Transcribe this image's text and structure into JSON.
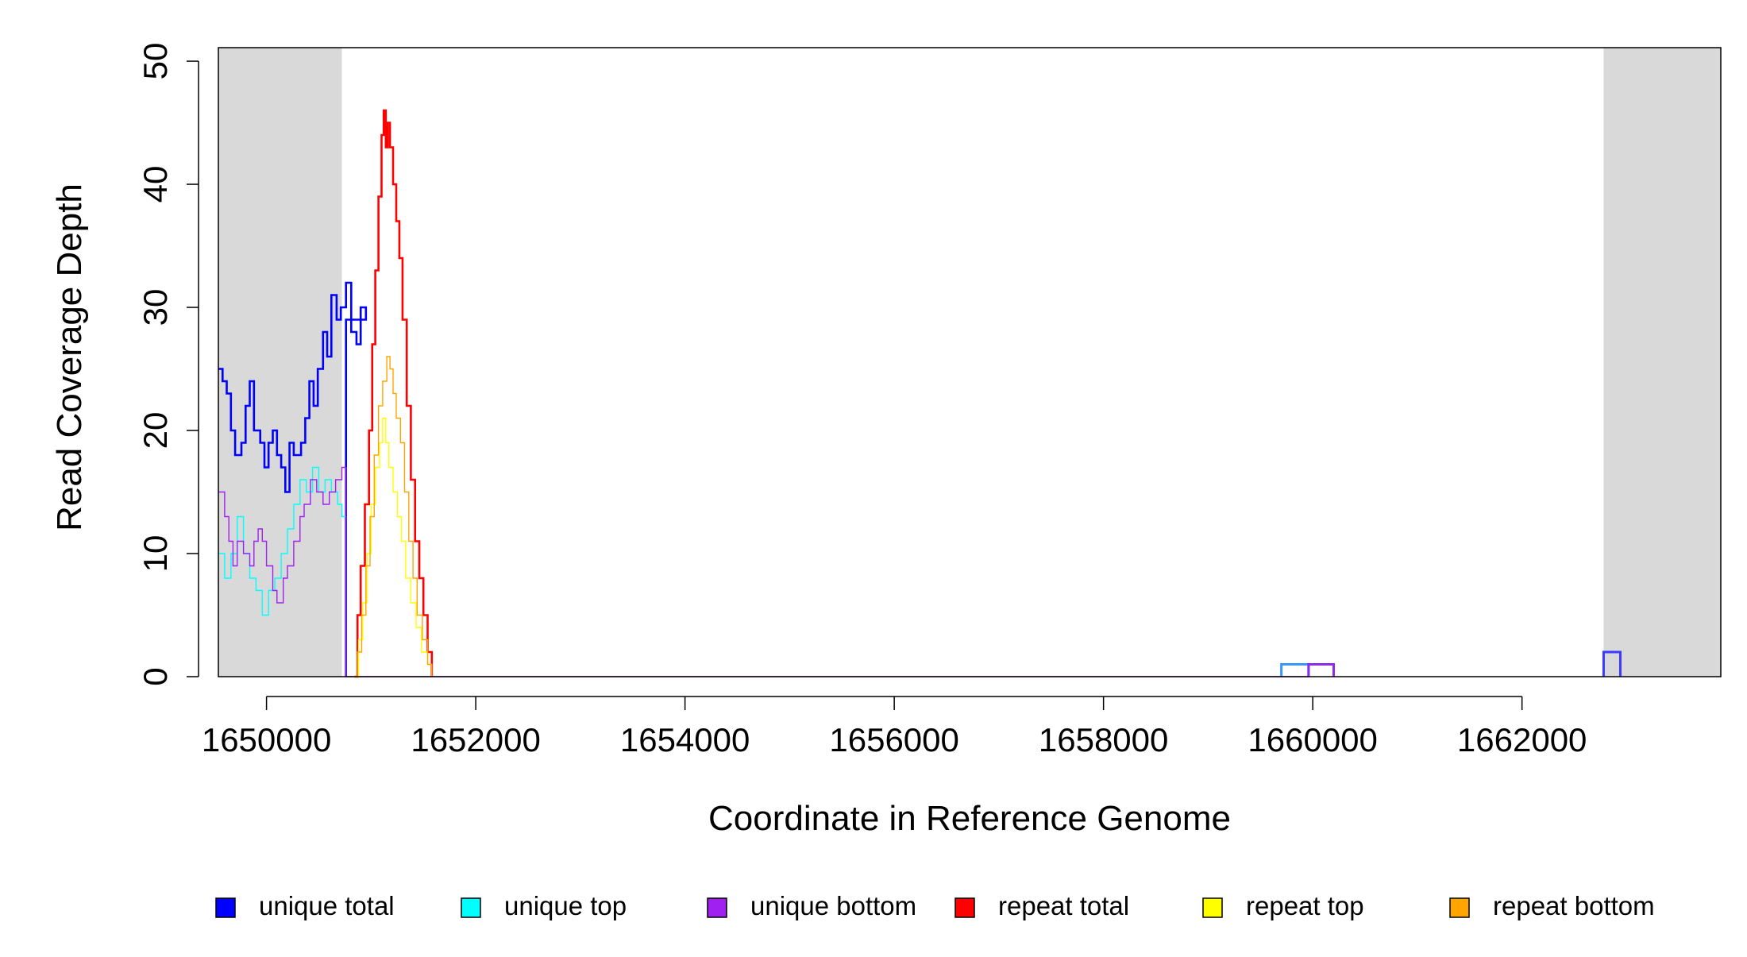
{
  "chart_data": {
    "type": "line",
    "title": "",
    "xlabel": "Coordinate in Reference Genome",
    "ylabel": "Read Coverage Depth",
    "xlim": [
      1649540,
      1663900
    ],
    "ylim": [
      0,
      50
    ],
    "x_ticks": [
      1650000,
      1652000,
      1654000,
      1656000,
      1658000,
      1660000,
      1662000
    ],
    "x_tick_labels": [
      "1650000",
      "1652000",
      "1654000",
      "1656000",
      "1658000",
      "1660000",
      "1662000"
    ],
    "y_ticks": [
      0,
      10,
      20,
      30,
      40,
      50
    ],
    "y_tick_labels": [
      "0",
      "10",
      "20",
      "30",
      "40",
      "50"
    ],
    "grid": false,
    "legend_position": "bottom",
    "shaded_regions": [
      {
        "x0": 1649540,
        "x1": 1650720,
        "color": "#d9d9d9"
      },
      {
        "x0": 1662780,
        "x1": 1663900,
        "color": "#d9d9d9"
      }
    ],
    "series": [
      {
        "name": "unique total",
        "color": "#0000ff",
        "width": 2.6,
        "points": [
          [
            1649540,
            25
          ],
          [
            1649580,
            24
          ],
          [
            1649620,
            23
          ],
          [
            1649660,
            20
          ],
          [
            1649700,
            18
          ],
          [
            1649760,
            19
          ],
          [
            1649800,
            22
          ],
          [
            1649840,
            24
          ],
          [
            1649880,
            20
          ],
          [
            1649940,
            19
          ],
          [
            1649980,
            17
          ],
          [
            1650020,
            19
          ],
          [
            1650060,
            20
          ],
          [
            1650100,
            18
          ],
          [
            1650140,
            17
          ],
          [
            1650180,
            15
          ],
          [
            1650220,
            19
          ],
          [
            1650260,
            18
          ],
          [
            1650330,
            19
          ],
          [
            1650370,
            21
          ],
          [
            1650410,
            24
          ],
          [
            1650450,
            22
          ],
          [
            1650490,
            25
          ],
          [
            1650540,
            28
          ],
          [
            1650580,
            26
          ],
          [
            1650620,
            31
          ],
          [
            1650670,
            29
          ],
          [
            1650710,
            30
          ],
          [
            1650760,
            32
          ],
          [
            1650810,
            28
          ],
          [
            1650860,
            27
          ],
          [
            1650900,
            30
          ],
          [
            1650950,
            29
          ],
          [
            1650760,
            0
          ]
        ]
      },
      {
        "name": "unique top",
        "color": "#00ffff",
        "width": 1.4,
        "points": [
          [
            1649540,
            10
          ],
          [
            1649600,
            8
          ],
          [
            1649660,
            10
          ],
          [
            1649720,
            13
          ],
          [
            1649780,
            10
          ],
          [
            1649840,
            8
          ],
          [
            1649900,
            7
          ],
          [
            1649960,
            5
          ],
          [
            1650020,
            7
          ],
          [
            1650080,
            8
          ],
          [
            1650140,
            10
          ],
          [
            1650200,
            12
          ],
          [
            1650260,
            14
          ],
          [
            1650320,
            16
          ],
          [
            1650380,
            15
          ],
          [
            1650440,
            17
          ],
          [
            1650500,
            15
          ],
          [
            1650560,
            16
          ],
          [
            1650620,
            15
          ],
          [
            1650680,
            14
          ],
          [
            1650720,
            13
          ],
          [
            1650760,
            0
          ]
        ]
      },
      {
        "name": "unique bottom",
        "color": "#a020f0",
        "width": 1.4,
        "points": [
          [
            1649540,
            15
          ],
          [
            1649600,
            13
          ],
          [
            1649640,
            11
          ],
          [
            1649680,
            9
          ],
          [
            1649720,
            11
          ],
          [
            1649780,
            10
          ],
          [
            1649840,
            9
          ],
          [
            1649880,
            11
          ],
          [
            1649920,
            12
          ],
          [
            1649960,
            11
          ],
          [
            1650000,
            9
          ],
          [
            1650060,
            7
          ],
          [
            1650100,
            6
          ],
          [
            1650160,
            8
          ],
          [
            1650200,
            9
          ],
          [
            1650260,
            11
          ],
          [
            1650320,
            13
          ],
          [
            1650360,
            14
          ],
          [
            1650420,
            16
          ],
          [
            1650480,
            15
          ],
          [
            1650540,
            14
          ],
          [
            1650600,
            15
          ],
          [
            1650660,
            16
          ],
          [
            1650720,
            17
          ],
          [
            1650760,
            0
          ],
          [
            1659700,
            0
          ],
          [
            1659960,
            1
          ],
          [
            1660200,
            0
          ]
        ]
      },
      {
        "name": "repeat total",
        "color": "#ff0000",
        "width": 2.6,
        "points": [
          [
            1650840,
            0
          ],
          [
            1650870,
            5
          ],
          [
            1650900,
            9
          ],
          [
            1650940,
            14
          ],
          [
            1650980,
            20
          ],
          [
            1651010,
            27
          ],
          [
            1651040,
            33
          ],
          [
            1651070,
            39
          ],
          [
            1651100,
            44
          ],
          [
            1651120,
            46
          ],
          [
            1651140,
            43
          ],
          [
            1651160,
            45
          ],
          [
            1651180,
            43
          ],
          [
            1651210,
            40
          ],
          [
            1651240,
            37
          ],
          [
            1651270,
            34
          ],
          [
            1651300,
            29
          ],
          [
            1651340,
            22
          ],
          [
            1651380,
            16
          ],
          [
            1651420,
            11
          ],
          [
            1651460,
            8
          ],
          [
            1651500,
            5
          ],
          [
            1651540,
            2
          ],
          [
            1651580,
            0
          ]
        ]
      },
      {
        "name": "repeat top",
        "color": "#ffff00",
        "width": 1.4,
        "points": [
          [
            1650840,
            0
          ],
          [
            1650880,
            3
          ],
          [
            1650920,
            6
          ],
          [
            1650960,
            10
          ],
          [
            1651000,
            14
          ],
          [
            1651040,
            17
          ],
          [
            1651080,
            19
          ],
          [
            1651110,
            21
          ],
          [
            1651140,
            19
          ],
          [
            1651170,
            17
          ],
          [
            1651210,
            15
          ],
          [
            1651250,
            13
          ],
          [
            1651290,
            11
          ],
          [
            1651330,
            8
          ],
          [
            1651380,
            6
          ],
          [
            1651430,
            4
          ],
          [
            1651480,
            2
          ],
          [
            1651540,
            1
          ],
          [
            1651580,
            0
          ]
        ]
      },
      {
        "name": "repeat bottom",
        "color": "#ffa500",
        "width": 1.4,
        "points": [
          [
            1650840,
            0
          ],
          [
            1650870,
            2
          ],
          [
            1650910,
            5
          ],
          [
            1650950,
            9
          ],
          [
            1650990,
            13
          ],
          [
            1651030,
            18
          ],
          [
            1651070,
            22
          ],
          [
            1651110,
            24
          ],
          [
            1651150,
            26
          ],
          [
            1651180,
            25
          ],
          [
            1651210,
            23
          ],
          [
            1651240,
            21
          ],
          [
            1651280,
            19
          ],
          [
            1651320,
            15
          ],
          [
            1651360,
            11
          ],
          [
            1651400,
            8
          ],
          [
            1651440,
            5
          ],
          [
            1651490,
            3
          ],
          [
            1651540,
            1
          ],
          [
            1651580,
            0
          ]
        ]
      }
    ],
    "extra_boxes": [
      {
        "x0": 1659700,
        "x1": 1659960,
        "y": 1,
        "color": "#3399ff",
        "width": 3
      },
      {
        "x0": 1659960,
        "x1": 1660200,
        "y": 1,
        "color": "#7b2ff0",
        "width": 3
      },
      {
        "x0": 1662780,
        "x1": 1662940,
        "y": 2,
        "color": "#3b3bff",
        "width": 3
      }
    ],
    "legend": [
      {
        "label": "unique total",
        "color": "#0000ff"
      },
      {
        "label": "unique top",
        "color": "#00ffff"
      },
      {
        "label": "unique bottom",
        "color": "#a020f0"
      },
      {
        "label": "repeat total",
        "color": "#ff0000"
      },
      {
        "label": "repeat top",
        "color": "#ffff00"
      },
      {
        "label": "repeat bottom",
        "color": "#ffa500"
      }
    ]
  }
}
